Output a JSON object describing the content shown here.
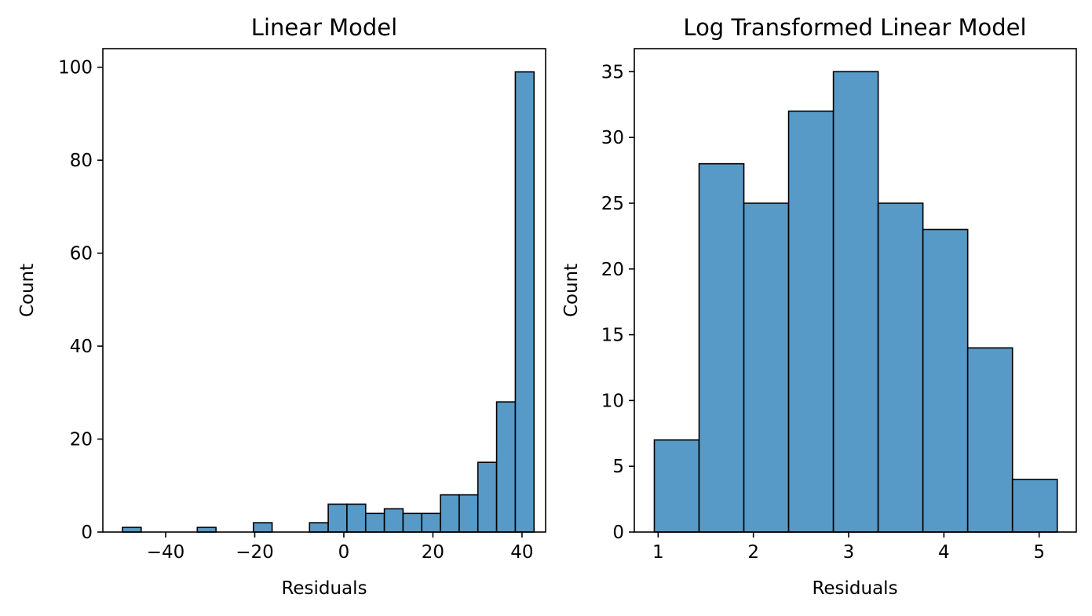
{
  "chart_data": [
    {
      "type": "bar",
      "title": "Linear Model",
      "xlabel": "Residuals",
      "ylabel": "Count",
      "xlim": [
        -54.1,
        45.3
      ],
      "ylim": [
        0,
        104
      ],
      "xticks": [
        -40,
        -20,
        0,
        20,
        40
      ],
      "xtick_labels": [
        "−40",
        "−20",
        "0",
        "20",
        "40"
      ],
      "yticks": [
        0,
        20,
        40,
        60,
        80,
        100
      ],
      "ytick_labels": [
        "0",
        "20",
        "40",
        "60",
        "80",
        "100"
      ],
      "bin_width": 4.2,
      "bins": [
        {
          "x0": -49.7,
          "x1": -45.5,
          "count": 1
        },
        {
          "x0": -45.5,
          "x1": -41.3,
          "count": 0
        },
        {
          "x0": -41.3,
          "x1": -37.1,
          "count": 0
        },
        {
          "x0": -37.1,
          "x1": -32.9,
          "count": 0
        },
        {
          "x0": -32.9,
          "x1": -28.7,
          "count": 1
        },
        {
          "x0": -28.7,
          "x1": -24.5,
          "count": 0
        },
        {
          "x0": -24.5,
          "x1": -20.3,
          "count": 0
        },
        {
          "x0": -20.3,
          "x1": -16.1,
          "count": 2
        },
        {
          "x0": -16.1,
          "x1": -11.9,
          "count": 0
        },
        {
          "x0": -11.9,
          "x1": -7.7,
          "count": 0
        },
        {
          "x0": -7.7,
          "x1": -3.5,
          "count": 2
        },
        {
          "x0": -3.5,
          "x1": 0.7,
          "count": 6
        },
        {
          "x0": 0.7,
          "x1": 4.9,
          "count": 6
        },
        {
          "x0": 4.9,
          "x1": 9.1,
          "count": 4
        },
        {
          "x0": 9.1,
          "x1": 13.3,
          "count": 5
        },
        {
          "x0": 13.3,
          "x1": 17.5,
          "count": 4
        },
        {
          "x0": 17.5,
          "x1": 21.7,
          "count": 4
        },
        {
          "x0": 21.7,
          "x1": 25.9,
          "count": 8
        },
        {
          "x0": 25.9,
          "x1": 30.1,
          "count": 8
        },
        {
          "x0": 30.1,
          "x1": 34.3,
          "count": 15
        },
        {
          "x0": 34.3,
          "x1": 38.5,
          "count": 28
        },
        {
          "x0": 38.5,
          "x1": 42.7,
          "count": 99
        }
      ],
      "bar_color": "#5799c7",
      "edge_color": "#000000",
      "grid": false
    },
    {
      "type": "bar",
      "title": "Log Transformed Linear Model",
      "xlabel": "Residuals",
      "ylabel": "Count",
      "xlim": [
        0.75,
        5.39
      ],
      "ylim": [
        0,
        36.75
      ],
      "xticks": [
        1,
        2,
        3,
        4,
        5
      ],
      "xtick_labels": [
        "1",
        "2",
        "3",
        "4",
        "5"
      ],
      "yticks": [
        0,
        5,
        10,
        15,
        20,
        25,
        30,
        35
      ],
      "ytick_labels": [
        "0",
        "5",
        "10",
        "15",
        "20",
        "25",
        "30",
        "35"
      ],
      "bin_width": 0.47,
      "bins": [
        {
          "x0": 0.96,
          "x1": 1.43,
          "count": 7
        },
        {
          "x0": 1.43,
          "x1": 1.9,
          "count": 28
        },
        {
          "x0": 1.9,
          "x1": 2.37,
          "count": 25
        },
        {
          "x0": 2.37,
          "x1": 2.84,
          "count": 32
        },
        {
          "x0": 2.84,
          "x1": 3.31,
          "count": 35
        },
        {
          "x0": 3.31,
          "x1": 3.78,
          "count": 25
        },
        {
          "x0": 3.78,
          "x1": 4.25,
          "count": 23
        },
        {
          "x0": 4.25,
          "x1": 4.72,
          "count": 14
        },
        {
          "x0": 4.72,
          "x1": 5.19,
          "count": 4
        }
      ],
      "bar_color": "#5799c7",
      "edge_color": "#000000",
      "grid": false
    }
  ]
}
